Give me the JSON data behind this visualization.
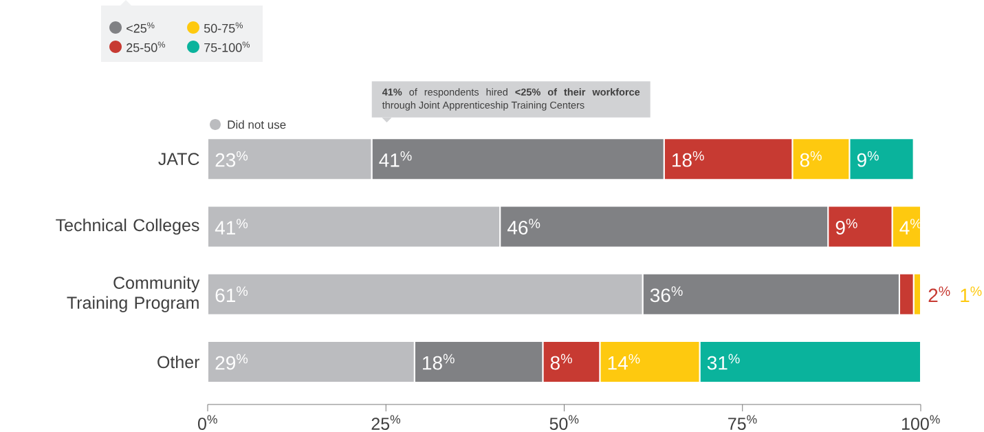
{
  "chart_data": {
    "type": "bar",
    "orientation": "horizontal",
    "stacked": true,
    "categories": [
      "JATC",
      "Technical Colleges",
      "Community Training Program",
      "Other"
    ],
    "series": [
      {
        "name": "Did not use",
        "color": "#bbbcbf",
        "values": [
          23,
          41,
          61,
          29
        ],
        "value_labels": [
          "23$^{%}$",
          "41$^{%}$",
          "61$^{%}$",
          "29$^{%}$"
        ]
      },
      {
        "name": "<25$^{%}$",
        "color": "#808184",
        "values": [
          41,
          46,
          36,
          18
        ],
        "value_labels": [
          "41$^{%}$",
          "46$^{%}$",
          "36$^{%}$",
          "18$^{%}$"
        ]
      },
      {
        "name": "25-50$^{%}$",
        "color": "#c73a32",
        "values": [
          18,
          9,
          2,
          8
        ],
        "value_labels": [
          "18$^{%}$",
          "9$^{%}$",
          "2$^{%}$",
          "8$^{%}$"
        ]
      },
      {
        "name": "50-75$^{%}$",
        "color": "#fec90f",
        "values": [
          8,
          4,
          1,
          14
        ],
        "value_labels": [
          "8$^{%}$",
          "4$^{%}$",
          "1$^{%}$",
          "14$^{%}$"
        ]
      },
      {
        "name": "75-100$^{%}$",
        "color": "#0ab39c",
        "values": [
          9,
          null,
          null,
          31
        ],
        "value_labels": [
          "9$^{%}$",
          null,
          null,
          "31$^{%}$"
        ]
      }
    ],
    "xlim": [
      0,
      100
    ],
    "xticks": [
      {
        "value": 0,
        "label": "0$^{%}$"
      },
      {
        "value": 25,
        "label": "25$^{%}$"
      },
      {
        "value": 50,
        "label": "50$^{%}$"
      },
      {
        "value": 75,
        "label": "75$^{%}$"
      },
      {
        "value": 100,
        "label": "100$^{%}$"
      }
    ],
    "legend": "top left",
    "annotations": [
      "**41%** of respondents hired **<25% of their workforce** through Joint Apprenticeship Training Centers"
    ]
  }
}
